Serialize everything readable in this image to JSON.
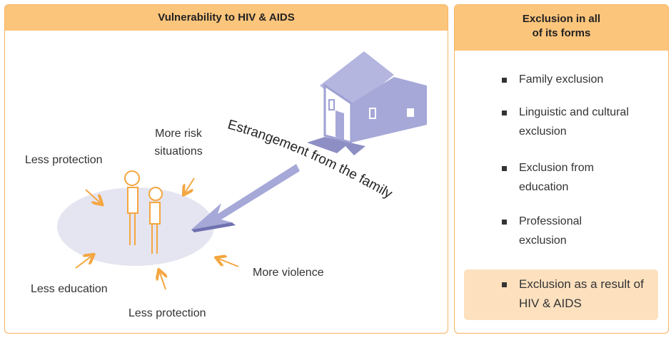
{
  "left_panel": {
    "title": "Vulnerability to HIV & AIDS",
    "labels": [
      "More risk situations",
      "Less protection",
      "Less education",
      "Less protection",
      "More violence"
    ],
    "arrow_label": "Estrangement from the family"
  },
  "right_panel": {
    "title": "Exclusion in all of its forms",
    "items": [
      "Family exclusion",
      "Linguistic and cultural exclusion",
      "Exclusion from education",
      "Professional exclusion"
    ],
    "highlight": "Exclusion as a result of HIV & AIDS"
  }
}
